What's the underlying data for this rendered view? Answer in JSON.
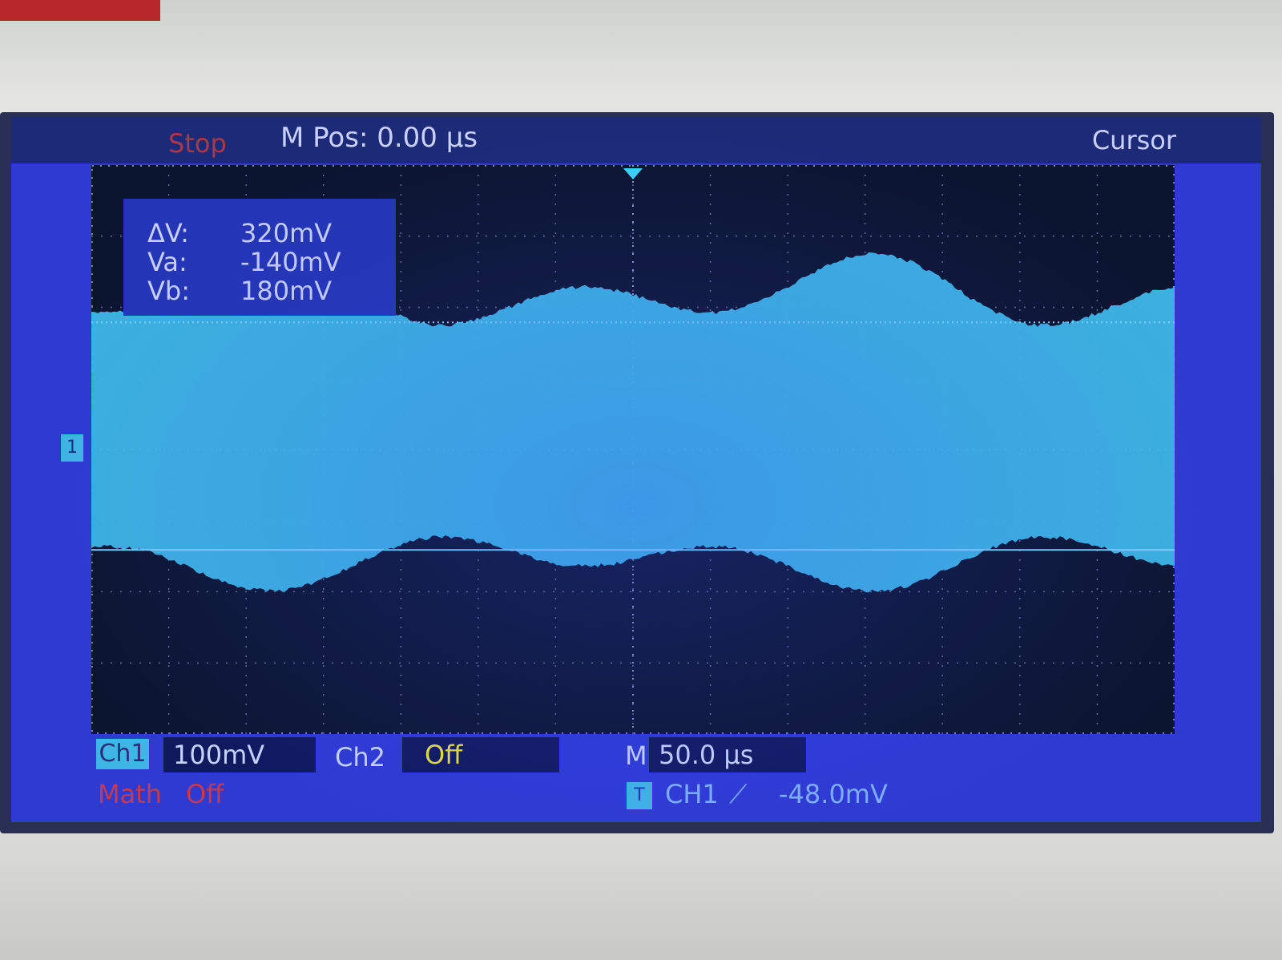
{
  "status": {
    "run_state": "Stop",
    "horizontal_position": "M Pos: 0.00 µs",
    "menu": "Cursor"
  },
  "cursor_readout": {
    "delta_label": "ΔV:",
    "delta_value": "320mV",
    "a_label": "Va:",
    "a_value": "-140mV",
    "b_label": "Vb:",
    "b_value": "180mV"
  },
  "channel_marker": "1",
  "channels": {
    "ch1_label": "Ch1",
    "ch1_scale": "100mV",
    "ch2_label": "Ch2",
    "ch2_state": "Off",
    "math_label": "Math",
    "math_state": "Off"
  },
  "timebase": {
    "label": "M",
    "value": "50.0 µs"
  },
  "trigger": {
    "icon": "T",
    "source": "CH1",
    "edge": "⟋",
    "level": "-48.0mV"
  },
  "colors": {
    "trace": "#3fb8e8",
    "screen": "#2f3ad2",
    "plot_background": "#0b1530",
    "cursor_line": "#7fd0ff"
  },
  "waveform": {
    "description_free": true,
    "cursor_a_volts": -0.14,
    "cursor_b_volts": 0.18
  }
}
